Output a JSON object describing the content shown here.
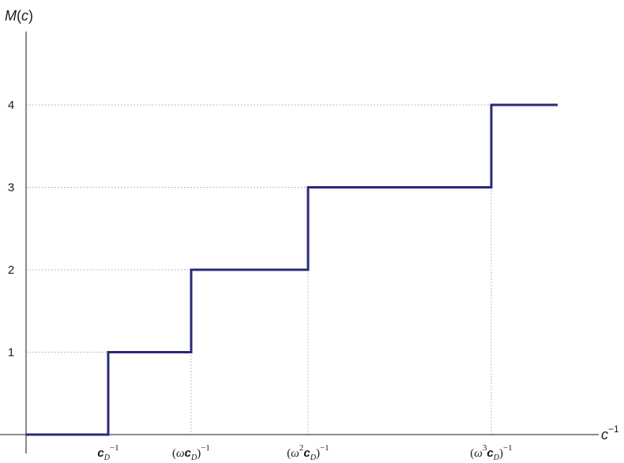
{
  "chart_data": {
    "type": "line",
    "step": true,
    "title": "",
    "ylabel": "M(c)",
    "xlabel": "c⁻¹",
    "y_ticks": [
      "1",
      "2",
      "3",
      "4"
    ],
    "x_tick_labels": [
      "c_D⁻¹",
      "(ωc_D)⁻¹",
      "(ω²c_D)⁻¹",
      "(ω³c_D)⁻¹"
    ],
    "ylim": [
      0,
      4.5
    ],
    "grid": "dotted guides at steps",
    "series": [
      {
        "color": "#2a2a7a",
        "points": [
          {
            "x": "start",
            "y": 0
          },
          {
            "x": "c_D⁻¹",
            "y": 0
          },
          {
            "x": "c_D⁻¹",
            "y": 1
          },
          {
            "x": "(ωc_D)⁻¹",
            "y": 1
          },
          {
            "x": "(ωc_D)⁻¹",
            "y": 2
          },
          {
            "x": "(ω²c_D)⁻¹",
            "y": 2
          },
          {
            "x": "(ω²c_D)⁻¹",
            "y": 3
          },
          {
            "x": "(ω³c_D)⁻¹",
            "y": 3
          },
          {
            "x": "(ω³c_D)⁻¹",
            "y": 4
          },
          {
            "x": "end",
            "y": 4
          }
        ]
      }
    ]
  }
}
